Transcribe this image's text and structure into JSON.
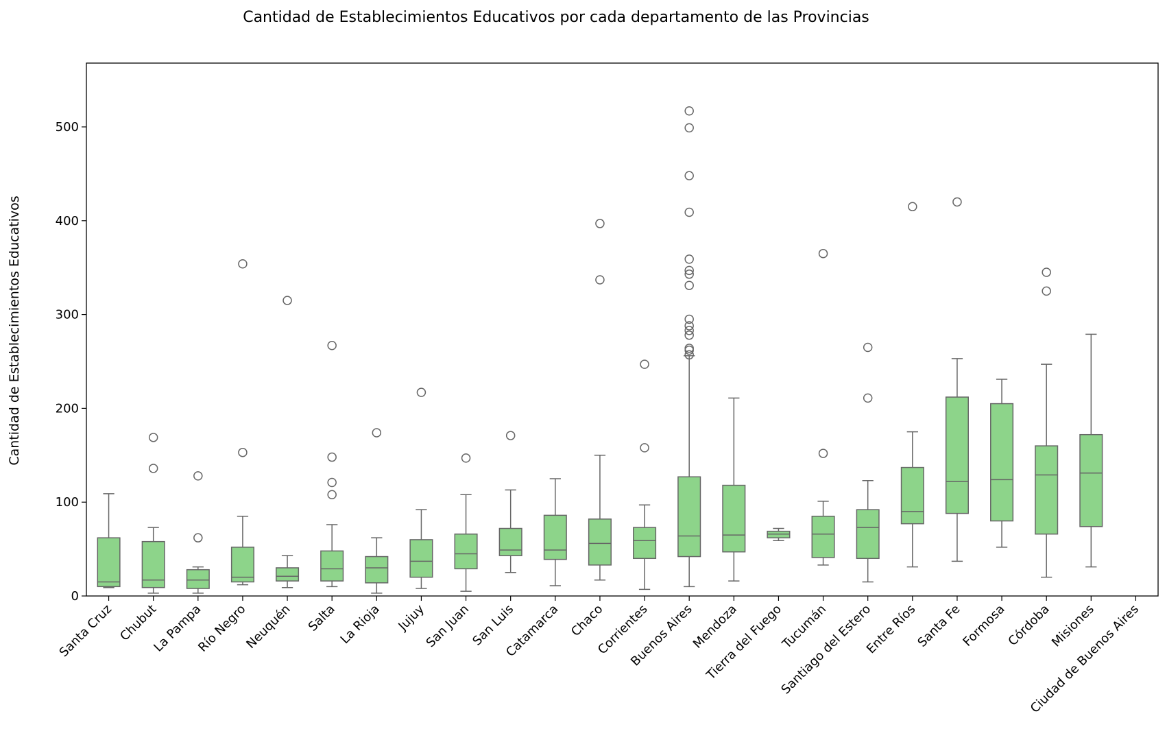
{
  "chart_data": {
    "type": "box",
    "title": "Cantidad de Establecimientos Educativos por cada departamento de las Provincias",
    "xlabel": "",
    "ylabel": "Cantidad de Establecimientos Educativos",
    "ylim": [
      0,
      568
    ],
    "yticks": [
      0,
      100,
      200,
      300,
      400,
      500
    ],
    "grid": false,
    "legend": "none",
    "box_color": "#8dd48a",
    "line_color": "#666666",
    "categories": [
      "Santa Cruz",
      "Chubut",
      "La Pampa",
      "Río Negro",
      "Neuquén",
      "Salta",
      "La Rioja",
      "Jujuy",
      "San Juan",
      "San Luis",
      "Catamarca",
      "Chaco",
      "Corrientes",
      "Buenos Aires",
      "Mendoza",
      "Tierra del Fuego",
      "Tucumán",
      "Santiago del Estero",
      "Entre Ríos",
      "Santa Fe",
      "Formosa",
      "Córdoba",
      "Misiones",
      "Ciudad de Buenos Aires"
    ],
    "boxes": [
      {
        "whisker_low": 9,
        "q1": 10,
        "median": 15,
        "q3": 62,
        "whisker_high": 109,
        "outliers": []
      },
      {
        "whisker_low": 3,
        "q1": 9,
        "median": 17,
        "q3": 58,
        "whisker_high": 73,
        "outliers": [
          136,
          169
        ]
      },
      {
        "whisker_low": 3,
        "q1": 8,
        "median": 17,
        "q3": 28,
        "whisker_high": 31,
        "outliers": [
          62,
          128
        ]
      },
      {
        "whisker_low": 12,
        "q1": 15,
        "median": 20,
        "q3": 52,
        "whisker_high": 85,
        "outliers": [
          153,
          354
        ]
      },
      {
        "whisker_low": 9,
        "q1": 16,
        "median": 21,
        "q3": 30,
        "whisker_high": 43,
        "outliers": [
          315
        ]
      },
      {
        "whisker_low": 10,
        "q1": 16,
        "median": 29,
        "q3": 48,
        "whisker_high": 76,
        "outliers": [
          108,
          121,
          148,
          267
        ]
      },
      {
        "whisker_low": 3,
        "q1": 14,
        "median": 30,
        "q3": 42,
        "whisker_high": 62,
        "outliers": [
          174
        ]
      },
      {
        "whisker_low": 8,
        "q1": 20,
        "median": 37,
        "q3": 60,
        "whisker_high": 92,
        "outliers": [
          217
        ]
      },
      {
        "whisker_low": 5,
        "q1": 29,
        "median": 45,
        "q3": 66,
        "whisker_high": 108,
        "outliers": [
          147
        ]
      },
      {
        "whisker_low": 25,
        "q1": 43,
        "median": 49,
        "q3": 72,
        "whisker_high": 113,
        "outliers": [
          171
        ]
      },
      {
        "whisker_low": 11,
        "q1": 39,
        "median": 49,
        "q3": 86,
        "whisker_high": 125,
        "outliers": []
      },
      {
        "whisker_low": 17,
        "q1": 33,
        "median": 56,
        "q3": 82,
        "whisker_high": 150,
        "outliers": [
          337,
          397
        ]
      },
      {
        "whisker_low": 7,
        "q1": 40,
        "median": 59,
        "q3": 73,
        "whisker_high": 97,
        "outliers": [
          158,
          247
        ]
      },
      {
        "whisker_low": 10,
        "q1": 42,
        "median": 64,
        "q3": 127,
        "whisker_high": 256,
        "outliers": [
          257,
          262,
          264,
          278,
          283,
          288,
          295,
          331,
          343,
          347,
          359,
          409,
          448,
          499,
          517
        ]
      },
      {
        "whisker_low": 16,
        "q1": 47,
        "median": 65,
        "q3": 118,
        "whisker_high": 211,
        "outliers": []
      },
      {
        "whisker_low": 59,
        "q1": 62,
        "median": 66,
        "q3": 69,
        "whisker_high": 72,
        "outliers": []
      },
      {
        "whisker_low": 33,
        "q1": 41,
        "median": 66,
        "q3": 85,
        "whisker_high": 101,
        "outliers": [
          152,
          365
        ]
      },
      {
        "whisker_low": 15,
        "q1": 40,
        "median": 73,
        "q3": 92,
        "whisker_high": 123,
        "outliers": [
          211,
          265
        ]
      },
      {
        "whisker_low": 31,
        "q1": 77,
        "median": 90,
        "q3": 137,
        "whisker_high": 175,
        "outliers": [
          415
        ]
      },
      {
        "whisker_low": 37,
        "q1": 88,
        "median": 122,
        "q3": 212,
        "whisker_high": 253,
        "outliers": [
          420
        ]
      },
      {
        "whisker_low": 52,
        "q1": 80,
        "median": 124,
        "q3": 205,
        "whisker_high": 231,
        "outliers": []
      },
      {
        "whisker_low": 20,
        "q1": 66,
        "median": 129,
        "q3": 160,
        "whisker_high": 247,
        "outliers": [
          325,
          345
        ]
      },
      {
        "whisker_low": 31,
        "q1": 74,
        "median": 131,
        "q3": 172,
        "whisker_high": 279,
        "outliers": []
      },
      null
    ]
  }
}
